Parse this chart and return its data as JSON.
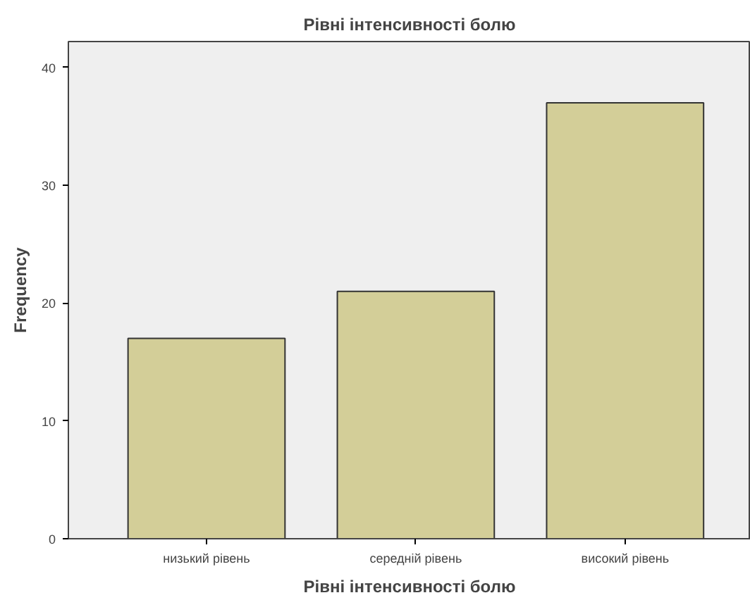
{
  "chart_data": {
    "type": "bar",
    "title": "Рівні інтенсивності болю",
    "xlabel": "Рівні інтенсивності болю",
    "ylabel": "Frequency",
    "categories": [
      "низький рівень",
      "середній рівень",
      "високий рівень"
    ],
    "values": [
      17,
      21,
      37
    ],
    "color": "#d3ce98",
    "ylim": [
      0,
      42.2
    ],
    "yticks": [
      0,
      10,
      20,
      30,
      40
    ],
    "grid": false
  }
}
